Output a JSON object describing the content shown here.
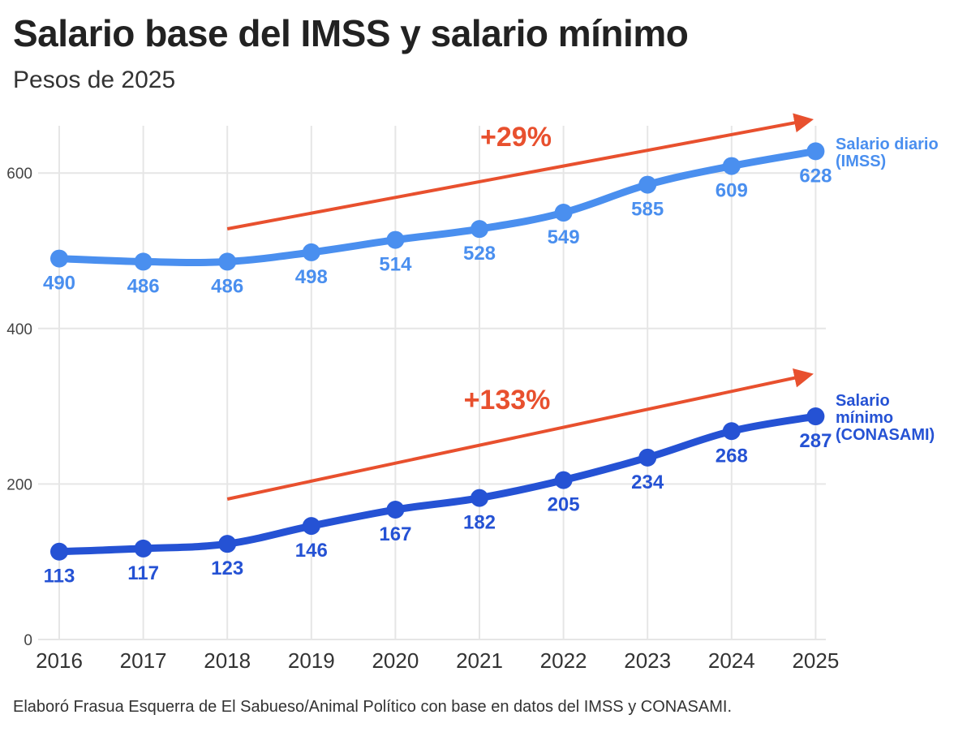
{
  "header": {
    "title": "Salario base del IMSS y salario mínimo",
    "subtitle": "Pesos de 2025"
  },
  "footer": {
    "source": "Elaboró Frasua Esquerra de El Sabueso/Animal Político con base en datos del IMSS y CONASAMI."
  },
  "colors": {
    "imss": "#4a8fef",
    "minimo": "#2552d4",
    "arrow": "#e8502e",
    "grid": "#e6e6e6"
  },
  "chart_data": {
    "type": "line",
    "title": "Salario base del IMSS y salario mínimo",
    "subtitle": "Pesos de 2025",
    "xlabel": "",
    "ylabel": "",
    "x": [
      "2016",
      "2017",
      "2018",
      "2019",
      "2020",
      "2021",
      "2022",
      "2023",
      "2024",
      "2025"
    ],
    "ylim": [
      0,
      660
    ],
    "yticks": [
      0,
      200,
      400,
      600
    ],
    "grid": true,
    "series": [
      {
        "key": "imss",
        "name_lines": [
          "Salario diario",
          "(IMSS)"
        ],
        "values": [
          490,
          486,
          486,
          498,
          514,
          528,
          549,
          585,
          609,
          628
        ]
      },
      {
        "key": "minimo",
        "name_lines": [
          "Salario",
          "mínimo",
          "(CONASAMI)"
        ],
        "values": [
          113,
          117,
          123,
          146,
          167,
          182,
          205,
          234,
          268,
          287
        ]
      }
    ],
    "annotations": [
      {
        "series": "imss",
        "text": "+29%",
        "from": "2018",
        "to": "2025"
      },
      {
        "series": "minimo",
        "text": "+133%",
        "from": "2018",
        "to": "2025"
      }
    ]
  }
}
